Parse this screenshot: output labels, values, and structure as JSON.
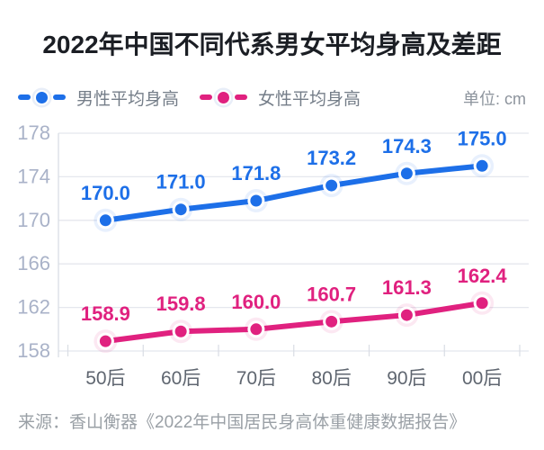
{
  "title": "2022年中国不同代系男女平均身高及差距",
  "legend": {
    "male_label": "男性平均身高",
    "female_label": "女性平均身高",
    "unit_label": "单位: cm"
  },
  "source": "来源：香山衡器《2022年中国居民身高体重健康数据报告》",
  "colors": {
    "male": "#1d6fe8",
    "female": "#e0217f",
    "grid_line": "#e4e7ee",
    "axis_line": "#d9dde4",
    "y_tick_label": "#a9b2c8",
    "x_tick_label": "#5f6670",
    "title_text": "#1b1e24",
    "legend_text": "#747d88",
    "unit_text": "#8d949d",
    "source_text": "#9aa0a6"
  },
  "chart_data": {
    "type": "line",
    "categories": [
      "50后",
      "60后",
      "70后",
      "80后",
      "90后",
      "00后"
    ],
    "series": [
      {
        "name": "男性平均身高",
        "color_key": "male",
        "values": [
          170.0,
          171.0,
          171.8,
          173.2,
          174.3,
          175.0
        ]
      },
      {
        "name": "女性平均身高",
        "color_key": "female",
        "values": [
          158.9,
          159.8,
          160.0,
          160.7,
          161.3,
          162.4
        ]
      }
    ],
    "ylim": [
      158,
      178
    ],
    "yticks": [
      178,
      174,
      170,
      166,
      162,
      158
    ],
    "grid": true,
    "legend_position": "top",
    "value_labels": true,
    "value_label_decimals": 1
  }
}
